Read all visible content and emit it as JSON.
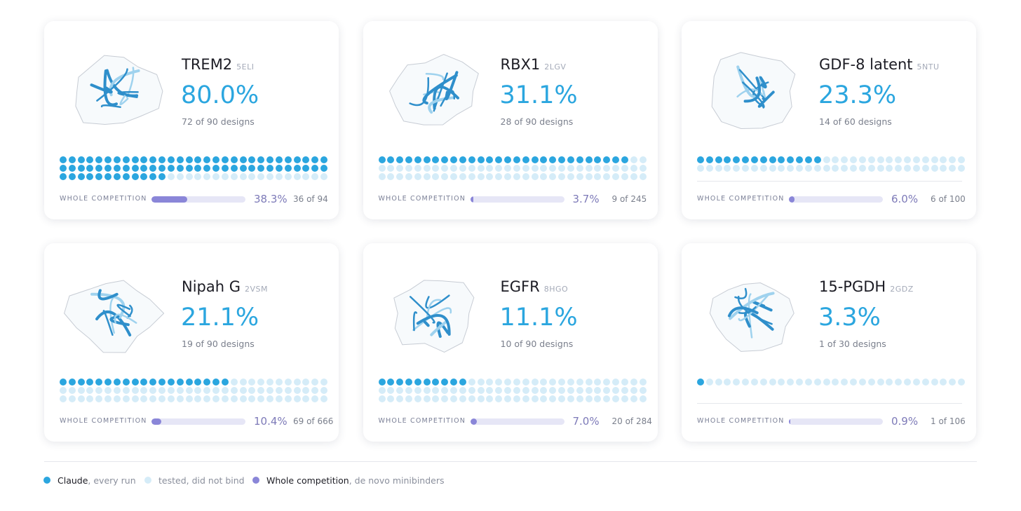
{
  "competition_label": "WHOLE COMPETITION",
  "cards": [
    {
      "name": "TREM2",
      "code": "5ELI",
      "rate": {
        "value": 80.0,
        "label": "80.0%"
      },
      "designs": "72 of 90 designs",
      "hits": 72,
      "total": 90,
      "competition_rate": {
        "value": 38.3,
        "label": "38.3%"
      },
      "competition_count": "36 of 94"
    },
    {
      "name": "RBX1",
      "code": "2LGV",
      "rate": {
        "value": 31.1,
        "label": "31.1%"
      },
      "designs": "28 of 90 designs",
      "hits": 28,
      "total": 90,
      "competition_rate": {
        "value": 3.7,
        "label": "3.7%"
      },
      "competition_count": "9 of 245"
    },
    {
      "name": "GDF-8 latent",
      "code": "5NTU",
      "rate": {
        "value": 23.3,
        "label": "23.3%"
      },
      "designs": "14 of 60 designs",
      "hits": 14,
      "total": 60,
      "competition_rate": {
        "value": 6.0,
        "label": "6.0%"
      },
      "competition_count": "6 of 100"
    },
    {
      "name": "Nipah G",
      "code": "2VSM",
      "rate": {
        "value": 21.1,
        "label": "21.1%"
      },
      "designs": "19 of 90 designs",
      "hits": 19,
      "total": 90,
      "competition_rate": {
        "value": 10.4,
        "label": "10.4%"
      },
      "competition_count": "69 of 666"
    },
    {
      "name": "EGFR",
      "code": "8HGO",
      "rate": {
        "value": 11.1,
        "label": "11.1%"
      },
      "designs": "10 of 90 designs",
      "hits": 10,
      "total": 90,
      "competition_rate": {
        "value": 7.0,
        "label": "7.0%"
      },
      "competition_count": "20 of 284"
    },
    {
      "name": "15-PGDH",
      "code": "2GDZ",
      "rate": {
        "value": 3.3,
        "label": "3.3%"
      },
      "designs": "1 of 30 designs",
      "hits": 1,
      "total": 30,
      "competition_rate": {
        "value": 0.9,
        "label": "0.9%"
      },
      "competition_count": "1 of 106"
    }
  ],
  "legend": [
    {
      "label": "Claude",
      "note": ", every run",
      "color": "#2ba6df"
    },
    {
      "note": "tested, did not bind",
      "color": "#d5ecf8"
    },
    {
      "label": "Whole competition",
      "note": ", de novo minibinders",
      "color": "#8a86d8"
    }
  ]
}
